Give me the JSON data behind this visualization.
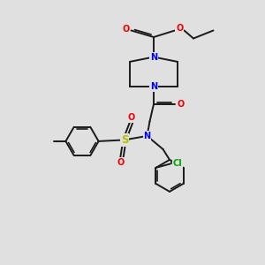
{
  "bg_color": "#e0e0e0",
  "bond_color": "#1a1a1a",
  "N_color": "#0000ee",
  "O_color": "#ee0000",
  "S_color": "#bbbb00",
  "Cl_color": "#00aa00",
  "font_size": 7.0,
  "line_width": 1.4,
  "fig_w": 3.0,
  "fig_h": 3.0,
  "dpi": 100,
  "xlim": [
    0,
    10
  ],
  "ylim": [
    0,
    10
  ]
}
